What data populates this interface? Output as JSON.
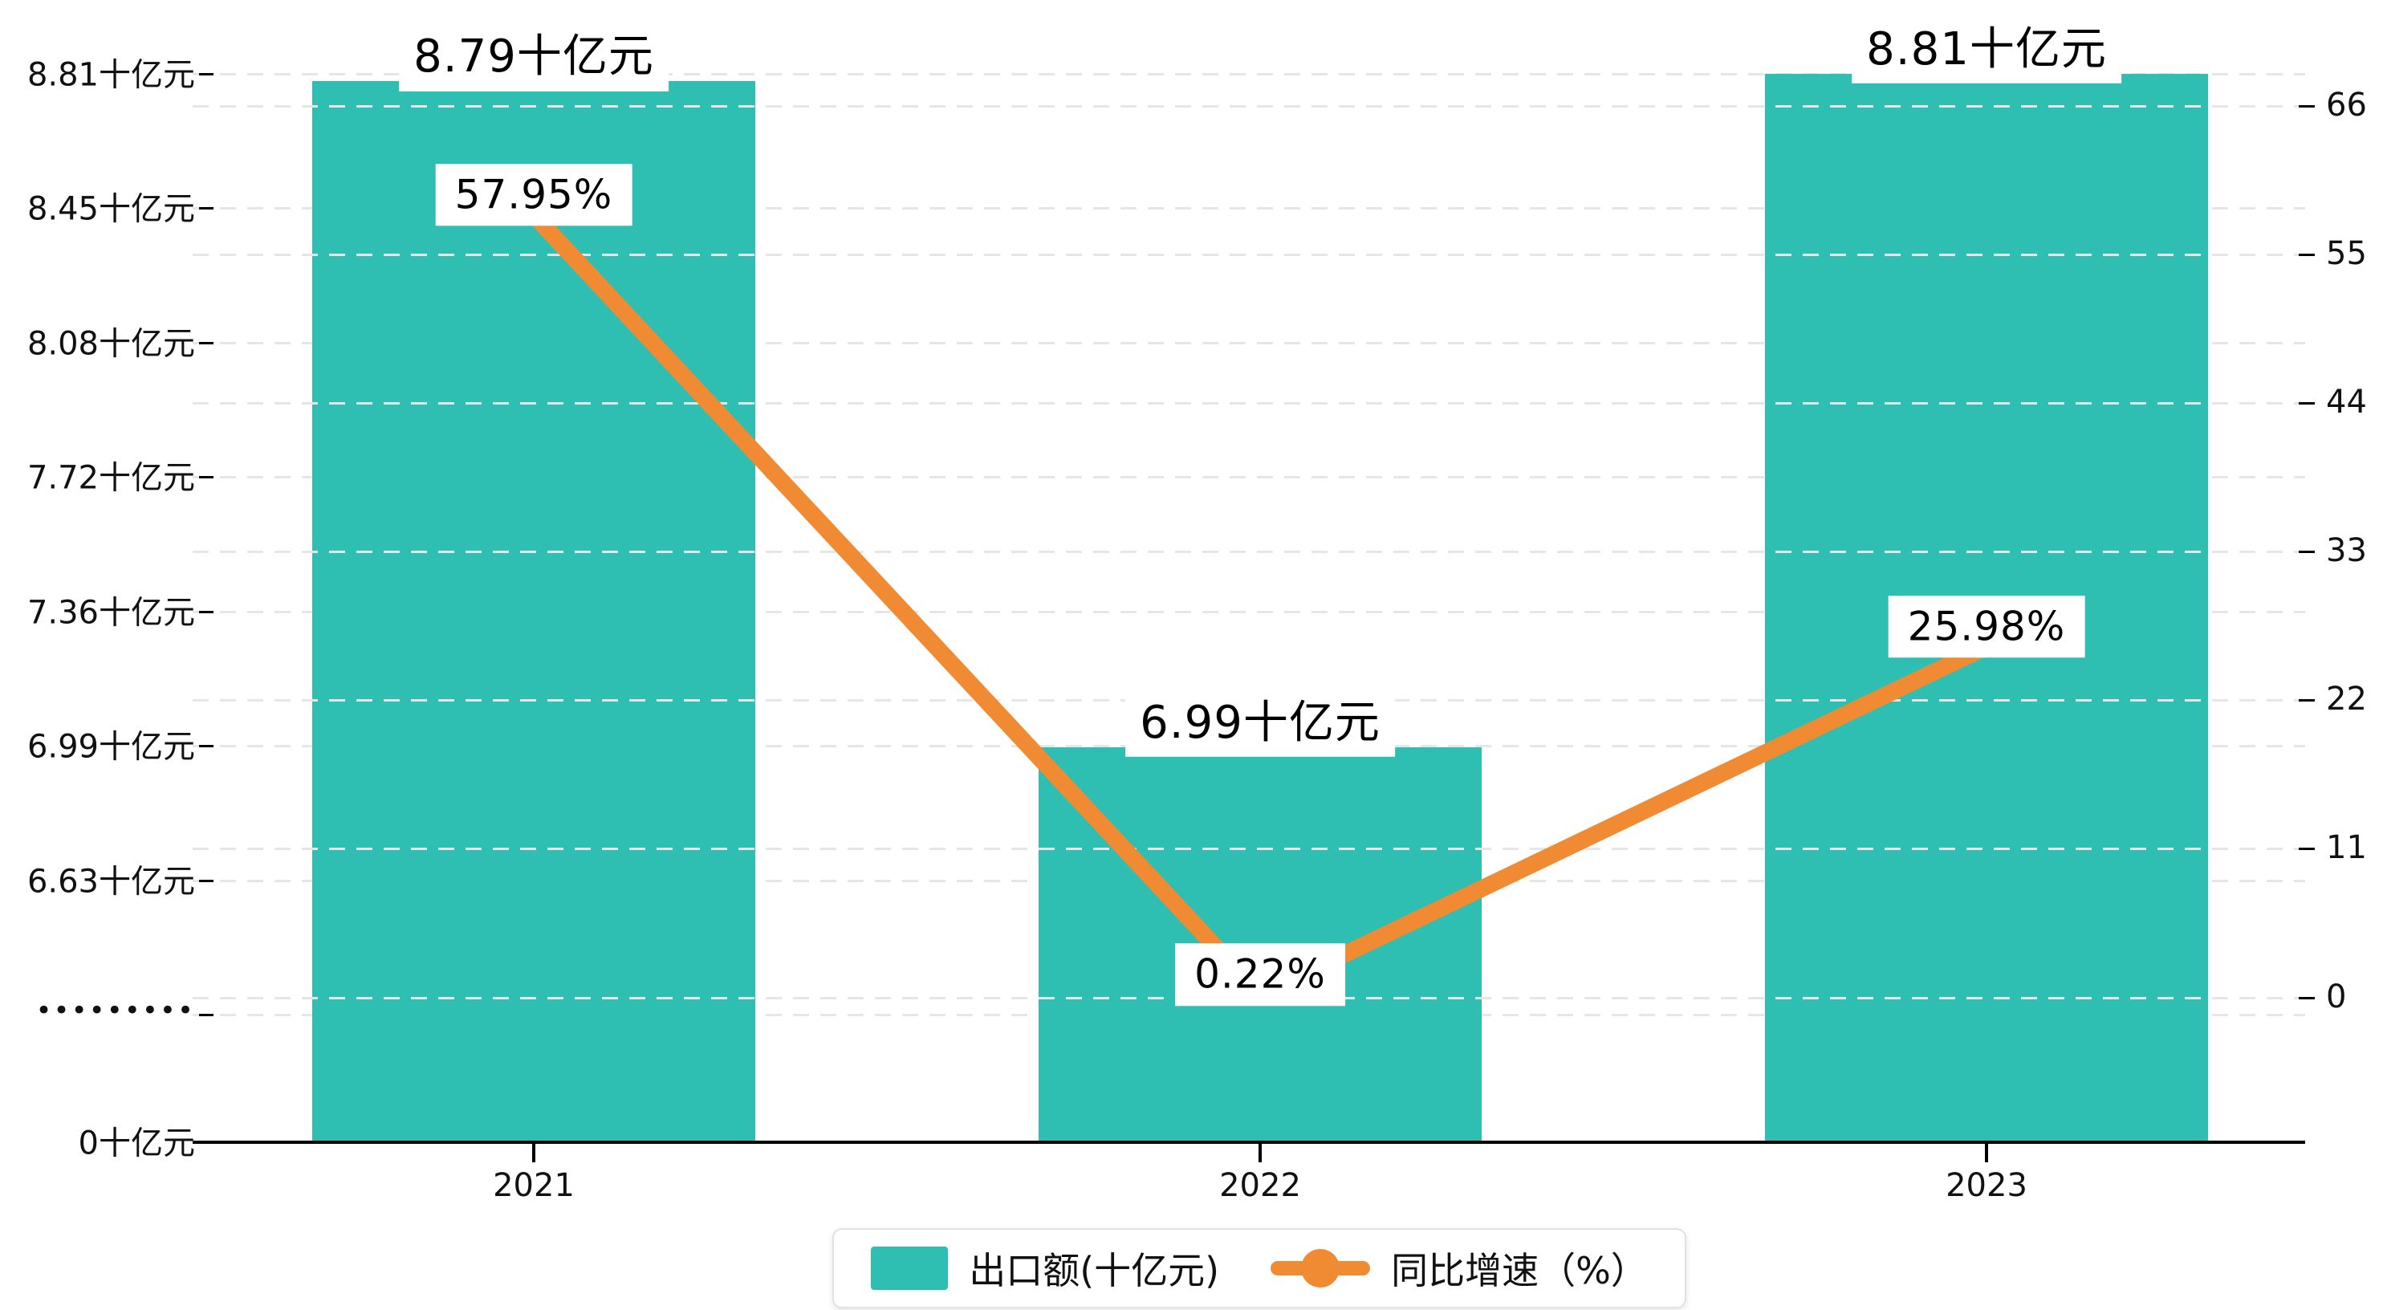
{
  "chart_data": {
    "type": "combo",
    "categories": [
      "2021",
      "2022",
      "2023"
    ],
    "series": [
      {
        "name": "出口额(十亿元)",
        "type": "bar",
        "values": [
          8.79,
          6.99,
          8.81
        ],
        "data_labels": [
          "8.79十亿元",
          "6.99十亿元",
          "8.81十亿元"
        ],
        "color": "#2FBEB2"
      },
      {
        "name": "同比增速（%）",
        "type": "line",
        "values": [
          57.95,
          0.22,
          25.98
        ],
        "data_labels": [
          "57.95%",
          "0.22%",
          "25.98%"
        ],
        "color": "#F08A33"
      }
    ],
    "left_axis": {
      "unit": "十亿元",
      "tick_labels": [
        "8.81十亿元",
        "8.45十亿元",
        "8.08十亿元",
        "7.72十亿元",
        "7.36十亿元",
        "6.99十亿元",
        "6.63十亿元",
        "•••••••••",
        "0十亿元"
      ],
      "has_axis_break": true
    },
    "right_axis": {
      "unit": "%",
      "tick_labels": [
        "66",
        "55",
        "44",
        "33",
        "22",
        "11",
        "0"
      ],
      "min": 0,
      "max": 66
    },
    "legend": {
      "items": [
        {
          "label": "出口额(十亿元)",
          "marker": "bar",
          "color": "#2FBEB2"
        },
        {
          "label": "同比增速（%）",
          "marker": "line",
          "color": "#F08A33"
        }
      ]
    },
    "grid": true,
    "gridline_color": "#e6e6e6",
    "background": "#ffffff"
  }
}
